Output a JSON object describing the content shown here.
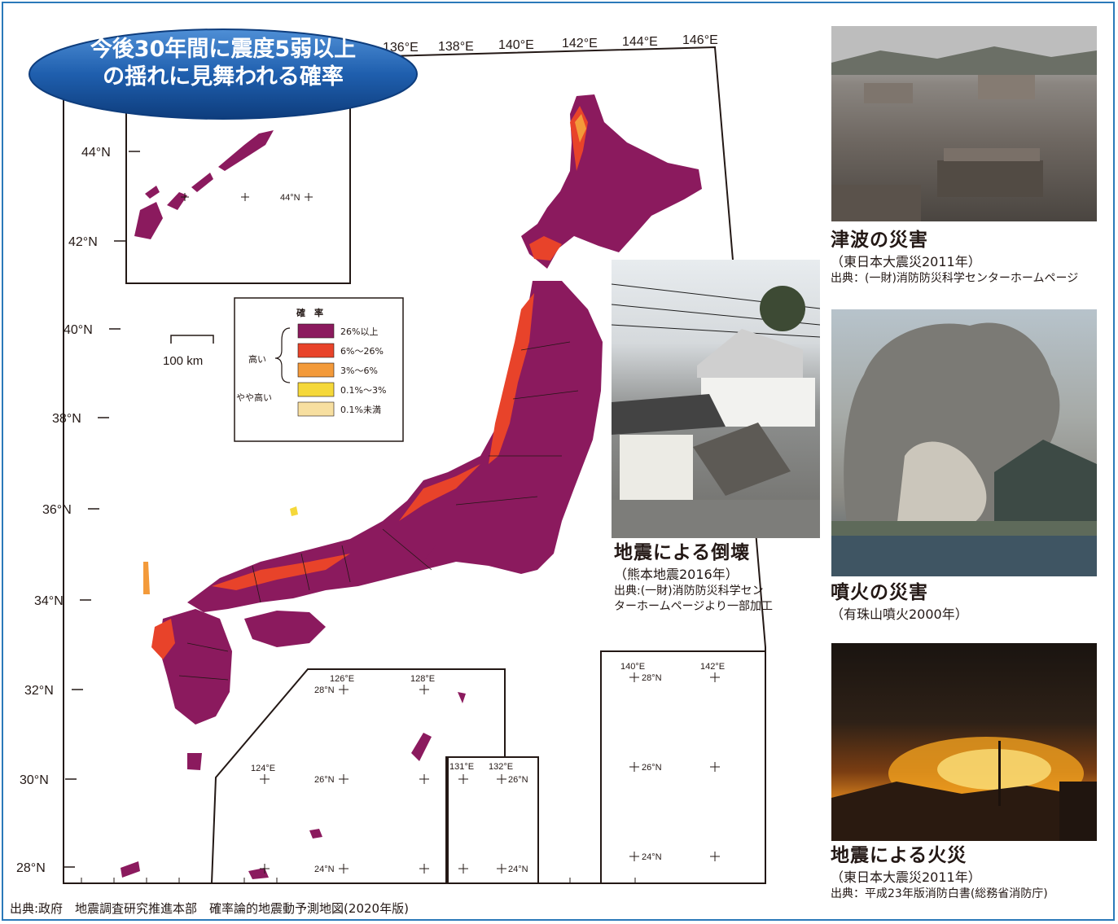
{
  "title": {
    "line1": "今後30年間に震度5弱以上",
    "line2": "の揺れに見舞われる確率"
  },
  "map": {
    "lon_labels": [
      "136°E",
      "138°E",
      "140°E",
      "142°E",
      "144°E",
      "146°E"
    ],
    "lat_labels": [
      "44°N",
      "42°N",
      "40°N",
      "38°N",
      "36°N",
      "34°N",
      "32°N",
      "30°N",
      "28°N"
    ],
    "scale_label": "100 km",
    "kuril_label": "44°N",
    "inset_sw": {
      "lon": [
        "124°E",
        "126°E",
        "128°E"
      ],
      "lat": [
        "28°N",
        "26°N",
        "24°N"
      ]
    },
    "inset_mid": {
      "lon": [
        "131°E",
        "132°E"
      ],
      "lat": [
        "26°N",
        "24°N"
      ]
    },
    "inset_east": {
      "lon": [
        "140°E",
        "142°E"
      ],
      "lat": [
        "28°N",
        "26°N",
        "24°N"
      ]
    }
  },
  "legend": {
    "title": "確　率",
    "group_high": "高い",
    "group_slightly_high": "やや高い",
    "items": [
      {
        "label": "26%以上",
        "color": "#8b1a5e"
      },
      {
        "label": "6%～26%",
        "color": "#e8432a"
      },
      {
        "label": "3%～6%",
        "color": "#f39a3a"
      },
      {
        "label": "0.1%～3%",
        "color": "#f5d83a"
      },
      {
        "label": "0.1%未満",
        "color": "#f7dfa0"
      }
    ]
  },
  "photos": [
    {
      "name": "tsunami",
      "title": "津波の災害",
      "sub": "（東日本大震災2011年）",
      "source": "出典：(一財)消防防災科学センターホームページ"
    },
    {
      "name": "collapse",
      "title": "地震による倒壊",
      "sub": "（熊本地震2016年）",
      "source1": "出典:(一財)消防防災科学セン",
      "source2": "ターホームページより一部加工"
    },
    {
      "name": "eruption",
      "title": "噴火の災害",
      "sub": "（有珠山噴火2000年）"
    },
    {
      "name": "fire",
      "title": "地震による火災",
      "sub": "（東日本大震災2011年）",
      "source": "出典：平成23年版消防白書(総務省消防庁)"
    }
  ],
  "source": "出典:政府　地震調査研究推進本部　確率論的地震動予測地図(2020年版)",
  "colors": {
    "frame": "#2a79b9",
    "pill": "#1f5fae",
    "purple": "#8b1a5e"
  }
}
